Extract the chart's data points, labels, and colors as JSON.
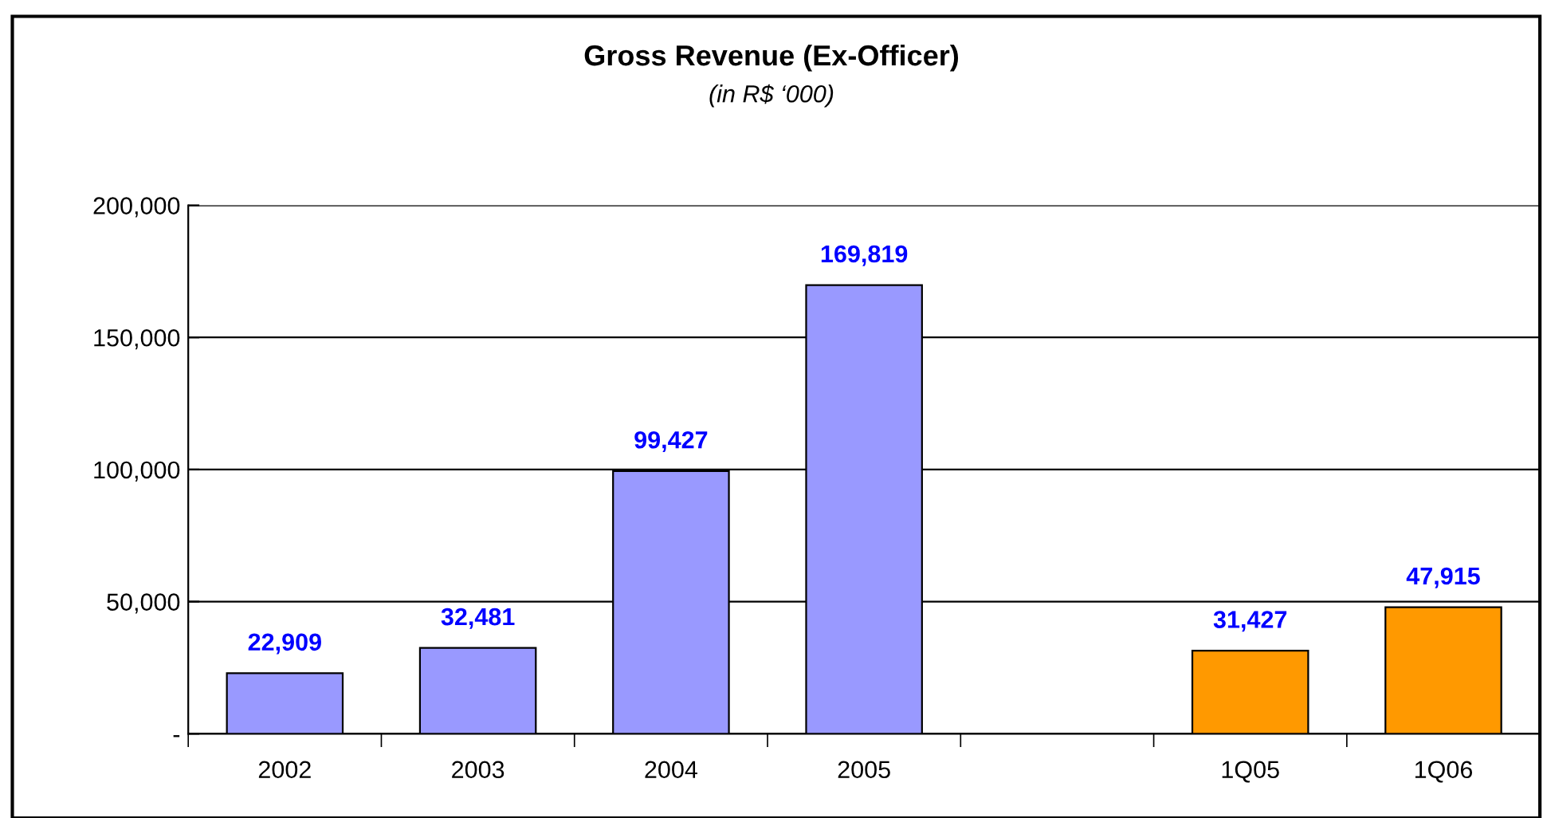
{
  "chart_data": {
    "type": "bar",
    "title": "Gross Revenue (Ex-Officer)",
    "subtitle": "(in R$ ‘000)",
    "categories": [
      "2002",
      "2003",
      "2004",
      "2005",
      null,
      "1Q05",
      "1Q06"
    ],
    "values": [
      22909,
      32481,
      99427,
      169819,
      null,
      31427,
      47915
    ],
    "colors": [
      "#9999ff",
      "#9999ff",
      "#9999ff",
      "#9999ff",
      null,
      "#ff9900",
      "#ff9900"
    ],
    "value_labels": [
      "22,909",
      "32,481",
      "99,427",
      "169,819",
      null,
      "31,427",
      "47,915"
    ],
    "ylim": [
      0,
      200000
    ],
    "yticks": [
      {
        "value": 0,
        "label": "-"
      },
      {
        "value": 50000,
        "label": "50,000"
      },
      {
        "value": 100000,
        "label": "100,000"
      },
      {
        "value": 150000,
        "label": "150,000"
      },
      {
        "value": 200000,
        "label": "200,000"
      }
    ],
    "grid": "y",
    "legend": false
  }
}
